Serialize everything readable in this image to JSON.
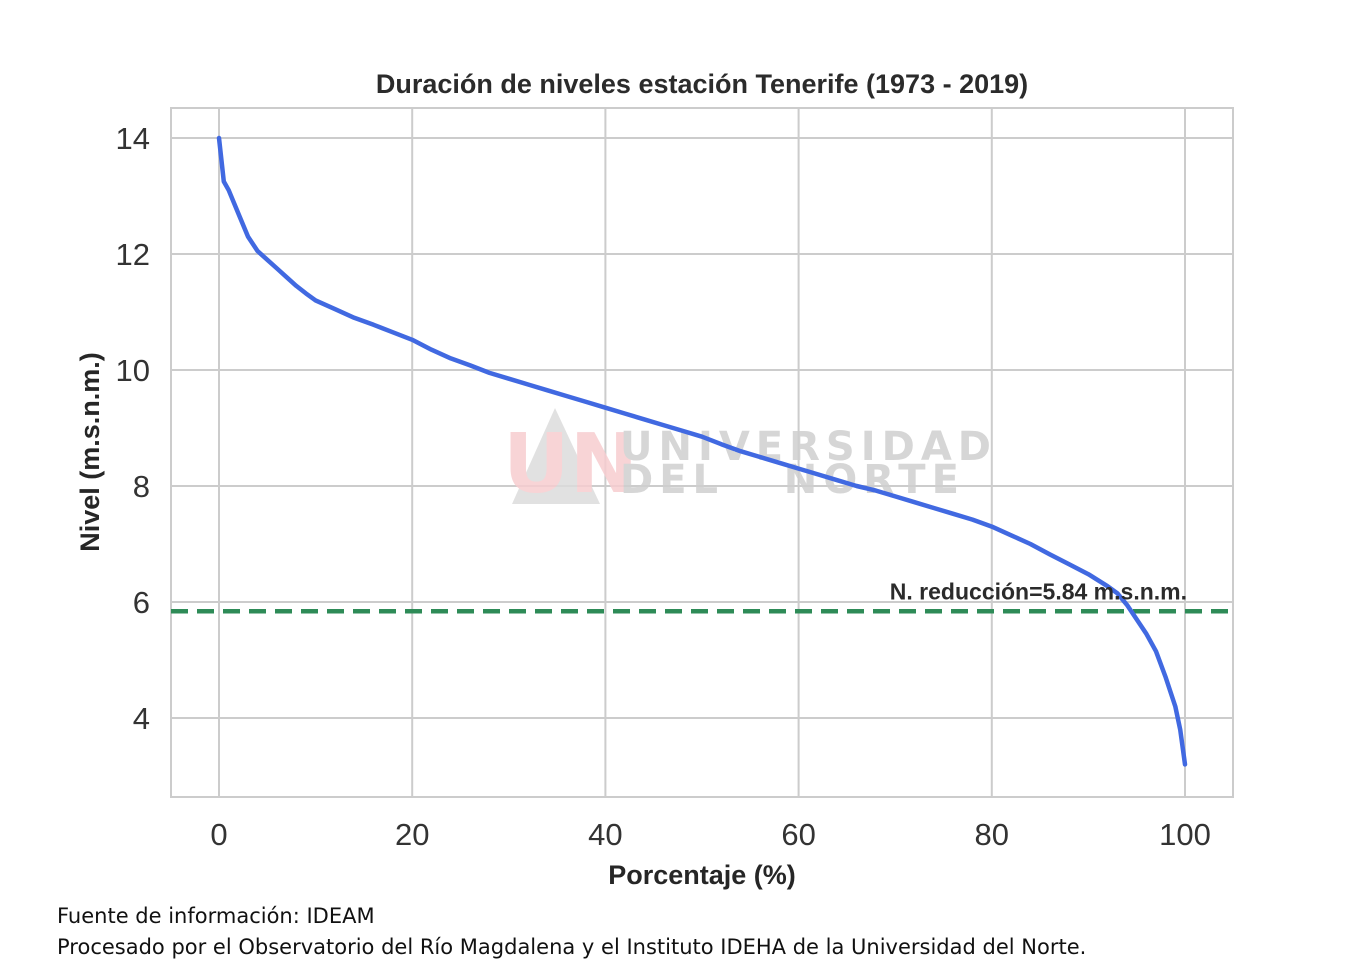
{
  "chart_data": {
    "type": "line",
    "title": "Duración de niveles estación Tenerife (1973 - 2019)",
    "xlabel": "Porcentaje (%)",
    "ylabel": "Nivel (m.s.n.m.)",
    "xlim": [
      -5,
      105
    ],
    "ylim": [
      2.7,
      14.6
    ],
    "xticks": [
      "0",
      "20",
      "40",
      "60",
      "80",
      "100"
    ],
    "yticks": [
      "4",
      "6",
      "8",
      "10",
      "12",
      "14"
    ],
    "xtick_values": [
      0,
      20,
      40,
      60,
      80,
      100
    ],
    "ytick_values": [
      4,
      6,
      8,
      10,
      12,
      14
    ],
    "grid": true,
    "series": [
      {
        "color": "#4169e1",
        "x": [
          0,
          0.5,
          1,
          2,
          3,
          4,
          5,
          6,
          7,
          8,
          9,
          10,
          12,
          14,
          16,
          18,
          20,
          22,
          24,
          26,
          28,
          30,
          32,
          34,
          36,
          38,
          40,
          42,
          44,
          46,
          48,
          50,
          52,
          54,
          56,
          58,
          60,
          62,
          64,
          66,
          68,
          70,
          72,
          74,
          76,
          78,
          80,
          82,
          84,
          86,
          88,
          90,
          92,
          93,
          94,
          95,
          96,
          97,
          98,
          98.5,
          99,
          99.5,
          100
        ],
        "y": [
          14.0,
          13.25,
          13.1,
          12.7,
          12.3,
          12.05,
          11.9,
          11.75,
          11.6,
          11.45,
          11.32,
          11.2,
          11.05,
          10.9,
          10.78,
          10.65,
          10.52,
          10.35,
          10.2,
          10.08,
          9.95,
          9.85,
          9.75,
          9.65,
          9.55,
          9.45,
          9.35,
          9.25,
          9.15,
          9.05,
          8.95,
          8.85,
          8.72,
          8.6,
          8.5,
          8.4,
          8.3,
          8.2,
          8.1,
          8.0,
          7.92,
          7.82,
          7.72,
          7.62,
          7.52,
          7.42,
          7.3,
          7.15,
          7.0,
          6.82,
          6.65,
          6.48,
          6.27,
          6.15,
          5.95,
          5.7,
          5.45,
          5.15,
          4.7,
          4.45,
          4.2,
          3.8,
          3.2
        ]
      },
      {
        "color": "#2e8b57",
        "style": "dashed",
        "y": 5.84
      }
    ],
    "annotations": [
      {
        "text": "N. reducción=5.84 m.s.n.m.",
        "x": 100,
        "y": 5.84
      }
    ]
  },
  "watermark": {
    "logo": "UN",
    "line1": "UNIVERSIDAD",
    "line2": "DEL   NORTE"
  },
  "footer": {
    "source": "Fuente de información: IDEAM",
    "processed": "Procesado por el Observatorio del Río Magdalena y el Instituto IDEHA de la Universidad del Norte."
  }
}
